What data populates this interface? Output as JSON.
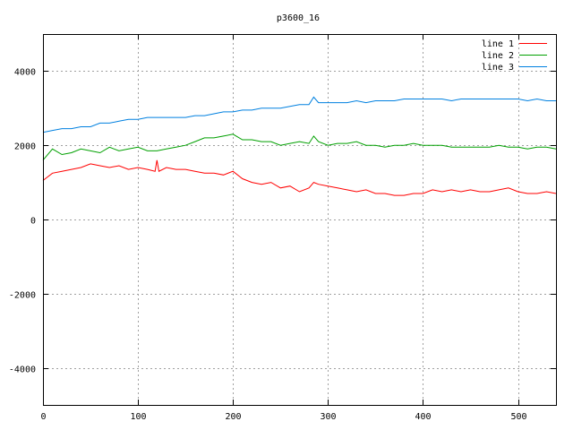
{
  "chart_data": {
    "type": "line",
    "title": "p3600_16",
    "xlabel": "",
    "ylabel": "",
    "xlim": [
      0,
      540
    ],
    "ylim": [
      -5000,
      5000
    ],
    "xticks": [
      0,
      100,
      200,
      300,
      400,
      500
    ],
    "yticks": [
      -4000,
      -2000,
      0,
      2000,
      4000
    ],
    "grid": true,
    "legend_position": "top-right",
    "series": [
      {
        "name": "line 1",
        "color": "#ff0000",
        "x": [
          0,
          10,
          20,
          30,
          40,
          50,
          60,
          70,
          80,
          90,
          100,
          110,
          118,
          120,
          122,
          130,
          140,
          150,
          160,
          170,
          180,
          190,
          200,
          210,
          220,
          230,
          240,
          250,
          260,
          270,
          280,
          285,
          290,
          300,
          310,
          320,
          330,
          340,
          350,
          360,
          370,
          380,
          390,
          400,
          410,
          420,
          430,
          440,
          450,
          460,
          470,
          480,
          490,
          500,
          510,
          520,
          530,
          540
        ],
        "y": [
          1050,
          1250,
          1300,
          1350,
          1400,
          1500,
          1450,
          1400,
          1450,
          1350,
          1400,
          1350,
          1300,
          1600,
          1300,
          1400,
          1350,
          1350,
          1300,
          1250,
          1250,
          1200,
          1300,
          1100,
          1000,
          950,
          1000,
          850,
          900,
          750,
          850,
          1000,
          950,
          900,
          850,
          800,
          750,
          800,
          700,
          700,
          650,
          650,
          700,
          700,
          800,
          750,
          800,
          750,
          800,
          750,
          750,
          800,
          850,
          750,
          700,
          700,
          750,
          700
        ]
      },
      {
        "name": "line 2",
        "color": "#00a000",
        "x": [
          0,
          10,
          20,
          30,
          40,
          50,
          60,
          70,
          80,
          90,
          100,
          110,
          120,
          130,
          140,
          150,
          160,
          170,
          180,
          190,
          200,
          210,
          220,
          230,
          240,
          250,
          260,
          270,
          280,
          285,
          290,
          300,
          310,
          320,
          330,
          340,
          350,
          360,
          370,
          380,
          390,
          400,
          410,
          420,
          430,
          440,
          450,
          460,
          470,
          480,
          490,
          500,
          510,
          520,
          530,
          540
        ],
        "y": [
          1600,
          1900,
          1750,
          1800,
          1900,
          1850,
          1800,
          1950,
          1850,
          1900,
          1950,
          1850,
          1850,
          1900,
          1950,
          2000,
          2100,
          2200,
          2200,
          2250,
          2300,
          2150,
          2150,
          2100,
          2100,
          2000,
          2050,
          2100,
          2050,
          2250,
          2100,
          2000,
          2050,
          2050,
          2100,
          2000,
          2000,
          1950,
          2000,
          2000,
          2050,
          2000,
          2000,
          2000,
          1950,
          1950,
          1950,
          1950,
          1950,
          2000,
          1950,
          1950,
          1900,
          1950,
          1950,
          1900
        ]
      },
      {
        "name": "line 3",
        "color": "#0080e0",
        "x": [
          0,
          10,
          20,
          30,
          40,
          50,
          60,
          70,
          80,
          90,
          100,
          110,
          120,
          130,
          140,
          150,
          160,
          170,
          180,
          190,
          200,
          210,
          220,
          230,
          240,
          250,
          260,
          270,
          280,
          285,
          290,
          300,
          310,
          320,
          330,
          340,
          350,
          360,
          370,
          380,
          390,
          400,
          410,
          420,
          430,
          440,
          450,
          460,
          470,
          480,
          490,
          500,
          510,
          520,
          530,
          540
        ],
        "y": [
          2350,
          2400,
          2450,
          2450,
          2500,
          2500,
          2600,
          2600,
          2650,
          2700,
          2700,
          2750,
          2750,
          2750,
          2750,
          2750,
          2800,
          2800,
          2850,
          2900,
          2900,
          2950,
          2950,
          3000,
          3000,
          3000,
          3050,
          3100,
          3100,
          3300,
          3150,
          3150,
          3150,
          3150,
          3200,
          3150,
          3200,
          3200,
          3200,
          3250,
          3250,
          3250,
          3250,
          3250,
          3200,
          3250,
          3250,
          3250,
          3250,
          3250,
          3250,
          3250,
          3200,
          3250,
          3200,
          3200
        ]
      }
    ]
  }
}
